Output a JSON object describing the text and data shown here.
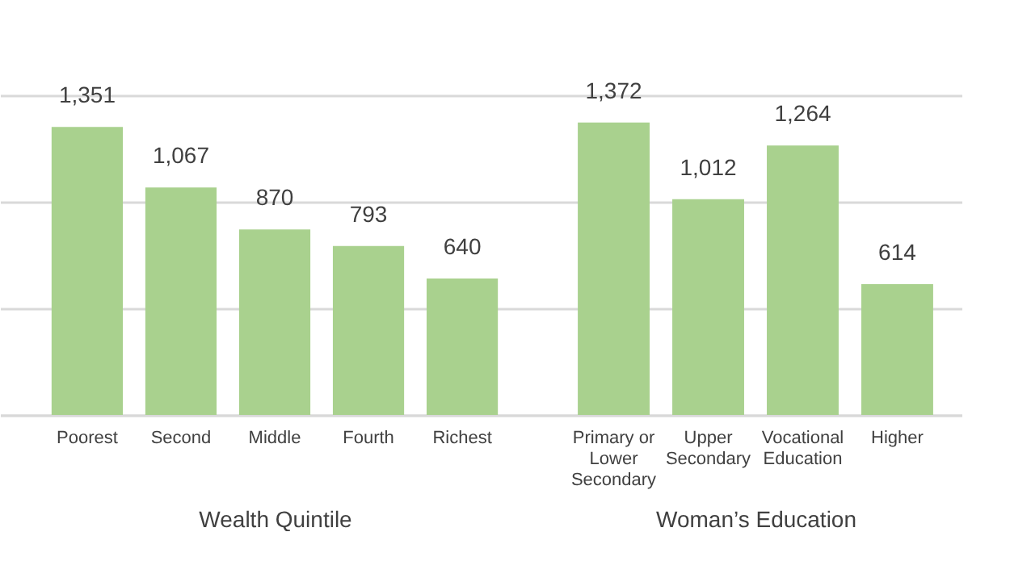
{
  "chart_data": [
    {
      "type": "bar",
      "xlabel": "Wealth Quintile",
      "categories": [
        "Poorest",
        "Second",
        "Middle",
        "Fourth",
        "Richest"
      ],
      "series": [
        {
          "color": "#a9d18e",
          "values": [
            1351,
            1067,
            870,
            793,
            640
          ],
          "value_labels": [
            "1,351",
            "1,067",
            "870",
            "793",
            "640"
          ]
        }
      ],
      "ylim": [
        0,
        1500
      ],
      "yticks": [
        0,
        500,
        1000,
        1500
      ],
      "grid": "y",
      "tick_labels": "x"
    },
    {
      "type": "bar",
      "xlabel": "Woman’s Education",
      "categories": [
        "Primary or Lower Secondary",
        "Upper Secondary",
        "Vocational Education",
        "Higher"
      ],
      "series": [
        {
          "color": "#a9d18e",
          "values": [
            1372,
            1012,
            1264,
            614
          ],
          "value_labels": [
            "1,372",
            "1,012",
            "1,264",
            "614"
          ]
        }
      ],
      "ylim": [
        0,
        1500
      ],
      "yticks": [
        0,
        500,
        1000,
        1500
      ],
      "grid": "y",
      "tick_labels": "x"
    }
  ]
}
